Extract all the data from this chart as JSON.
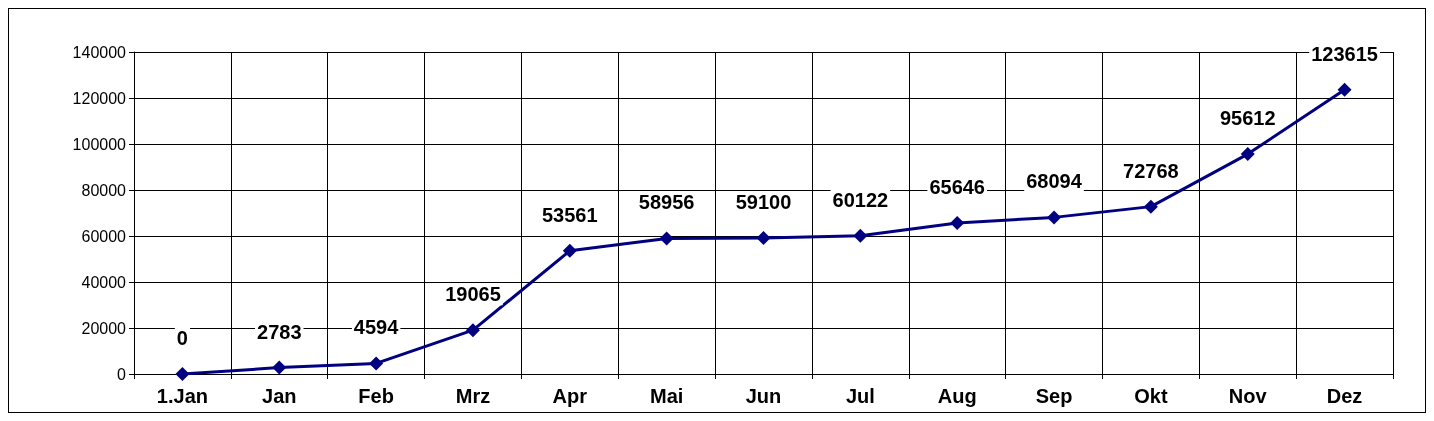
{
  "chart_data": {
    "type": "line",
    "categories": [
      "1.Jan",
      "Jan",
      "Feb",
      "Mrz",
      "Apr",
      "Mai",
      "Jun",
      "Jul",
      "Aug",
      "Sep",
      "Okt",
      "Nov",
      "Dez"
    ],
    "series": [
      {
        "color": "#000080",
        "values": [
          0,
          2783,
          4594,
          19065,
          53561,
          58956,
          59100,
          60122,
          65646,
          68094,
          72768,
          95612,
          123615
        ]
      }
    ],
    "ylim": [
      0,
      140000
    ],
    "yticks": [
      0,
      20000,
      40000,
      60000,
      80000,
      100000,
      120000,
      140000
    ],
    "grid": true,
    "marker": "diamond",
    "data_labels": true
  }
}
